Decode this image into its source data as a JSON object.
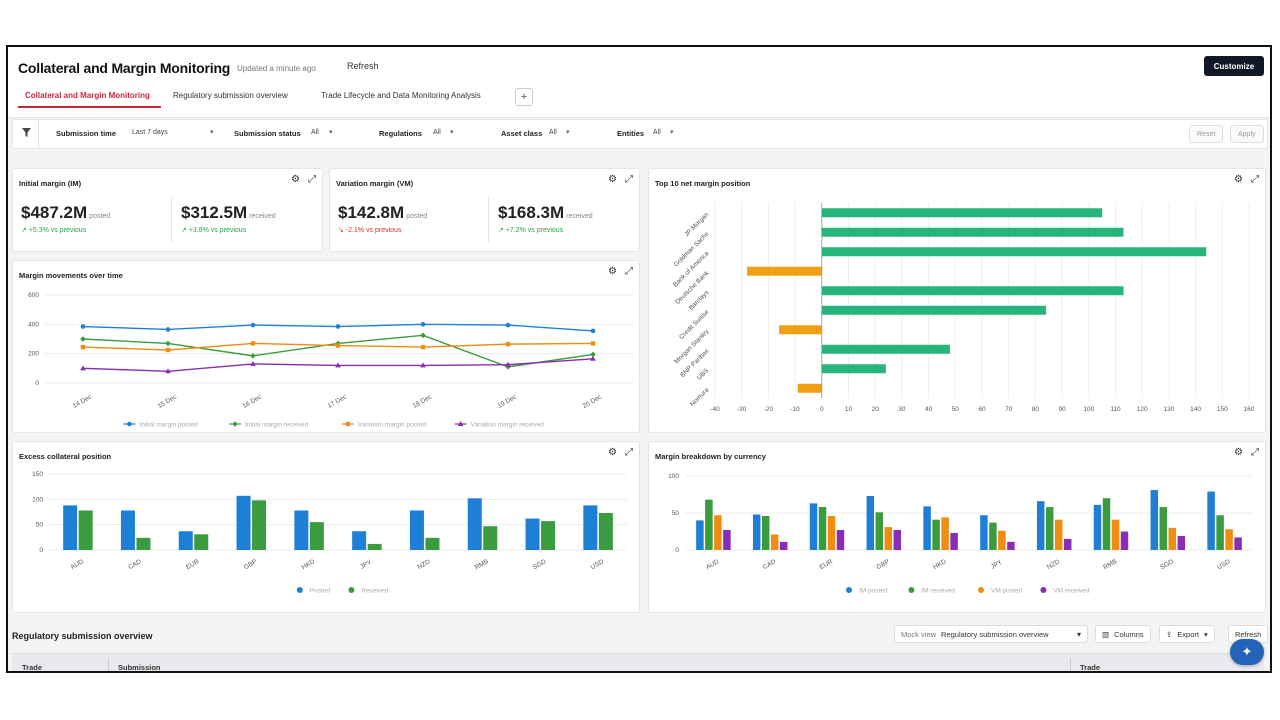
{
  "header": {
    "title": "Collateral and Margin Monitoring",
    "updated": "Updated a minute ago",
    "refresh": "Refresh",
    "customize": "Customize"
  },
  "tabs": [
    {
      "label": "Collateral and Margin Monitoring",
      "active": true
    },
    {
      "label": "Regulatory submission overview",
      "active": false
    },
    {
      "label": "Trade Lifecycle and Data Monitoring Analysis",
      "active": false
    }
  ],
  "tab_add": "+",
  "filters": {
    "submission_time": {
      "label": "Submission time",
      "value": "Last 7 days"
    },
    "submission_status": {
      "label": "Submission status",
      "value": "All"
    },
    "regulations": {
      "label": "Regulations",
      "value": "All"
    },
    "asset_class": {
      "label": "Asset class",
      "value": "All"
    },
    "entities": {
      "label": "Entities",
      "value": "All"
    },
    "reset": "Reset",
    "apply": "Apply"
  },
  "im": {
    "title": "Initial margin (IM)",
    "posted_value": "$487.2M",
    "posted_label": "posted",
    "posted_delta": "+5.3% vs previous",
    "received_value": "$312.5M",
    "received_label": "received",
    "received_delta": "+3.8% vs previous"
  },
  "vm": {
    "title": "Variation margin (VM)",
    "posted_value": "$142.8M",
    "posted_label": "posted",
    "posted_delta": "-2.1% vs previous",
    "received_value": "$168.3M",
    "received_label": "received",
    "received_delta": "+7.2% vs previous"
  },
  "colors": {
    "blue": "#1e7fd6",
    "green": "#3a9c3e",
    "orange": "#f08c10",
    "purple": "#8a2db5",
    "teal": "#26b57a",
    "amber": "#f0a010",
    "up": "#2e9e4a",
    "down": "#d93030"
  },
  "icons": {
    "filter": "funnel-icon",
    "settings": "sliders-icon",
    "expand": "expand-icon",
    "ai": "sparkle-icon"
  },
  "table": {
    "title": "Regulatory submission overview",
    "mock_view_label": "Mock view",
    "mock_view_value": "Regulatory submission overview",
    "columns_btn": "Columns",
    "export_btn": "Export",
    "refresh_btn": "Refresh",
    "headers": [
      "Trade",
      "Submission",
      "Trade"
    ]
  },
  "chart_data": [
    {
      "id": "movements",
      "type": "line",
      "title": "Margin movements over time",
      "categories": [
        "14 Dec",
        "15 Dec",
        "16 Dec",
        "17 Dec",
        "18 Dec",
        "19 Dec",
        "20 Dec"
      ],
      "ylim": [
        0,
        600
      ],
      "yticks": [
        0,
        200,
        400,
        600
      ],
      "series": [
        {
          "name": "Initial margin posted",
          "color": "#1e7fd6",
          "marker": "circle",
          "values": [
            385,
            365,
            395,
            385,
            400,
            395,
            355
          ]
        },
        {
          "name": "Initial margin received",
          "color": "#3a9c3e",
          "marker": "diamond",
          "values": [
            300,
            270,
            185,
            270,
            325,
            110,
            195
          ]
        },
        {
          "name": "Variation margin posted",
          "color": "#f08c10",
          "marker": "square",
          "values": [
            245,
            225,
            270,
            255,
            245,
            265,
            270
          ]
        },
        {
          "name": "Variation margin received",
          "color": "#8a2db5",
          "marker": "triangle",
          "values": [
            100,
            80,
            130,
            120,
            120,
            125,
            165
          ]
        }
      ],
      "legend": "bottom"
    },
    {
      "id": "top10",
      "type": "bar",
      "orientation": "horizontal",
      "title": "Top 10 net margin position",
      "categories": [
        "JP Morgan",
        "Goldman Sachs",
        "Bank of America",
        "Deutsche Bank",
        "Barclays",
        "Credit Suisse",
        "Morgan Stanley",
        "BNP Paribas",
        "UBS",
        "Nomura"
      ],
      "values": [
        105,
        113,
        144,
        -28,
        113,
        84,
        -16,
        48,
        24,
        -9
      ],
      "xlim": [
        -40,
        160
      ],
      "xticks": [
        -40,
        -30,
        -20,
        -10,
        0,
        10,
        20,
        30,
        40,
        50,
        60,
        70,
        80,
        90,
        100,
        110,
        120,
        130,
        140,
        150,
        160
      ],
      "positive_color": "#26b57a",
      "negative_color": "#f0a010"
    },
    {
      "id": "excess",
      "type": "bar",
      "title": "Excess collateral position",
      "categories": [
        "AUD",
        "CAD",
        "EUR",
        "GBP",
        "HKD",
        "JPY",
        "NZD",
        "RMB",
        "SGD",
        "USD"
      ],
      "ylim": [
        0,
        150
      ],
      "yticks": [
        0,
        50,
        100,
        150
      ],
      "series": [
        {
          "name": "Posted",
          "color": "#1e7fd6",
          "values": [
            88,
            78,
            37,
            107,
            78,
            37,
            78,
            102,
            62,
            88
          ]
        },
        {
          "name": "Received",
          "color": "#3a9c3e",
          "values": [
            78,
            24,
            31,
            98,
            55,
            12,
            24,
            47,
            57,
            73
          ]
        }
      ],
      "legend": "bottom"
    },
    {
      "id": "currency",
      "type": "bar",
      "title": "Margin breakdown by currency",
      "categories": [
        "AUD",
        "CAD",
        "EUR",
        "GBP",
        "HKD",
        "JPY",
        "NZD",
        "RMB",
        "SGD",
        "USD"
      ],
      "ylim": [
        0,
        100
      ],
      "yticks": [
        0,
        50,
        100
      ],
      "series": [
        {
          "name": "IM posted",
          "color": "#1e7fd6",
          "values": [
            40,
            48,
            63,
            73,
            59,
            47,
            66,
            61,
            81,
            79
          ]
        },
        {
          "name": "IM received",
          "color": "#3a9c3e",
          "values": [
            68,
            46,
            58,
            51,
            41,
            37,
            58,
            70,
            58,
            47
          ]
        },
        {
          "name": "VM posted",
          "color": "#f08c10",
          "values": [
            47,
            21,
            46,
            31,
            44,
            26,
            41,
            41,
            30,
            28
          ]
        },
        {
          "name": "VM received",
          "color": "#8a2db5",
          "values": [
            27,
            11,
            27,
            27,
            23,
            11,
            15,
            25,
            19,
            17
          ]
        }
      ],
      "legend": "bottom"
    }
  ]
}
